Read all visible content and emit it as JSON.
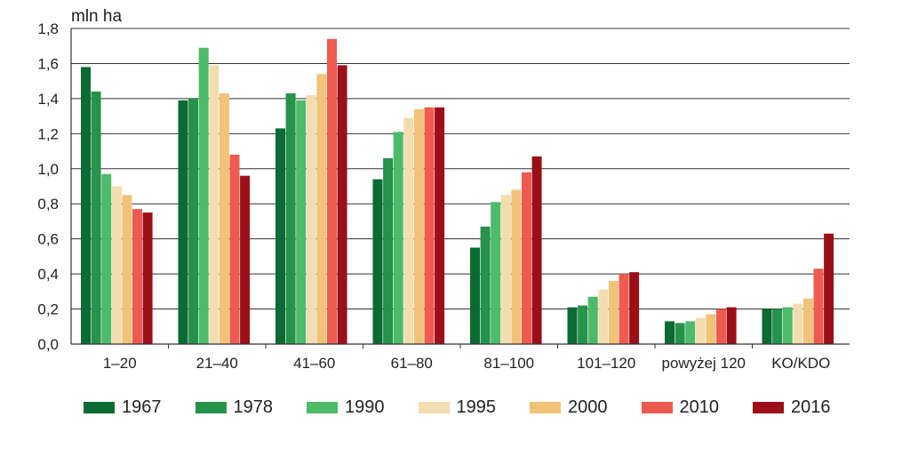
{
  "chart_data": {
    "type": "bar",
    "ylabel": "mln ha",
    "ylim": [
      0,
      1.8
    ],
    "yticks": [
      "0,0",
      "0,2",
      "0,4",
      "0,6",
      "0,8",
      "1,0",
      "1,2",
      "1,4",
      "1,6",
      "1,8"
    ],
    "grid": true,
    "legend_position": "bottom",
    "categories": [
      "1–20",
      "21–40",
      "41–60",
      "61–80",
      "81–100",
      "101–120",
      "powyżej 120",
      "KO/KDO"
    ],
    "series": [
      {
        "name": "1967",
        "color": "#0b6b33",
        "values": [
          1.58,
          1.39,
          1.23,
          0.94,
          0.55,
          0.21,
          0.13,
          0.2
        ]
      },
      {
        "name": "1978",
        "color": "#27924a",
        "values": [
          1.44,
          1.4,
          1.43,
          1.06,
          0.67,
          0.22,
          0.12,
          0.2
        ]
      },
      {
        "name": "1990",
        "color": "#4dbb6a",
        "values": [
          0.97,
          1.69,
          1.39,
          1.21,
          0.81,
          0.27,
          0.13,
          0.21
        ]
      },
      {
        "name": "1995",
        "color": "#f1ddb0",
        "values": [
          0.9,
          1.59,
          1.42,
          1.29,
          0.85,
          0.31,
          0.15,
          0.23
        ]
      },
      {
        "name": "2000",
        "color": "#f0c378",
        "values": [
          0.85,
          1.43,
          1.54,
          1.34,
          0.88,
          0.36,
          0.17,
          0.26
        ]
      },
      {
        "name": "2010",
        "color": "#ee5a50",
        "values": [
          0.77,
          1.08,
          1.74,
          1.35,
          0.98,
          0.4,
          0.2,
          0.43
        ]
      },
      {
        "name": "2016",
        "color": "#9b1018",
        "values": [
          0.75,
          0.96,
          1.59,
          1.35,
          1.07,
          0.41,
          0.21,
          0.63
        ]
      }
    ]
  }
}
